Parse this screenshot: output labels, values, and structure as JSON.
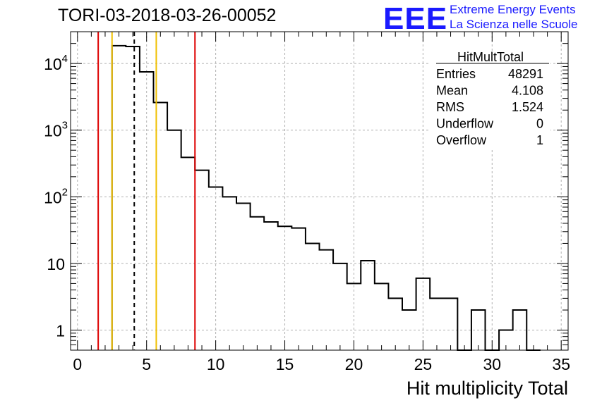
{
  "header": {
    "run_title": "TORI-03-2018-03-26-00052",
    "logo": "EEE",
    "logo_line1": "Extreme Energy Events",
    "logo_line2": "La Scienza nelle Scuole"
  },
  "stats": {
    "name": "HitMultTotal",
    "rows": [
      {
        "label": "Entries",
        "value": "48291"
      },
      {
        "label": "Mean",
        "value": "4.108"
      },
      {
        "label": "RMS",
        "value": "1.524"
      },
      {
        "label": "Underflow",
        "value": "0"
      },
      {
        "label": "Overflow",
        "value": "1"
      }
    ]
  },
  "chart_data": {
    "type": "histogram",
    "title": "TORI-03-2018-03-26-00052",
    "xlabel": "Hit multiplicity Total",
    "ylabel": "",
    "yscale": "log",
    "xlim": [
      -0.5,
      35.5
    ],
    "ylim": [
      0.5,
      30000
    ],
    "bin_width": 1,
    "bins": [
      {
        "x": 3,
        "y": 18500
      },
      {
        "x": 4,
        "y": 18000
      },
      {
        "x": 5,
        "y": 7500
      },
      {
        "x": 6,
        "y": 2600
      },
      {
        "x": 7,
        "y": 1000
      },
      {
        "x": 8,
        "y": 390
      },
      {
        "x": 9,
        "y": 250
      },
      {
        "x": 10,
        "y": 140
      },
      {
        "x": 11,
        "y": 100
      },
      {
        "x": 12,
        "y": 80
      },
      {
        "x": 13,
        "y": 50
      },
      {
        "x": 14,
        "y": 42
      },
      {
        "x": 15,
        "y": 36
      },
      {
        "x": 16,
        "y": 34
      },
      {
        "x": 17,
        "y": 20
      },
      {
        "x": 18,
        "y": 16
      },
      {
        "x": 19,
        "y": 10
      },
      {
        "x": 20,
        "y": 5
      },
      {
        "x": 21,
        "y": 11
      },
      {
        "x": 22,
        "y": 5
      },
      {
        "x": 23,
        "y": 3
      },
      {
        "x": 24,
        "y": 2
      },
      {
        "x": 25,
        "y": 6
      },
      {
        "x": 26,
        "y": 3
      },
      {
        "x": 27,
        "y": 3
      },
      {
        "x": 28,
        "y": 0
      },
      {
        "x": 29,
        "y": 2
      },
      {
        "x": 30,
        "y": 0
      },
      {
        "x": 31,
        "y": 1
      },
      {
        "x": 32,
        "y": 2
      },
      {
        "x": 33,
        "y": 0
      }
    ],
    "x_ticks": [
      0,
      5,
      10,
      15,
      20,
      25,
      30,
      35
    ],
    "x_tick_labels": [
      "0",
      "5",
      "10",
      "15",
      "20",
      "25",
      "30",
      "35"
    ],
    "y_ticks": [
      {
        "value": 1,
        "base": "1",
        "exp": ""
      },
      {
        "value": 10,
        "base": "10",
        "exp": ""
      },
      {
        "value": 100,
        "base": "10",
        "exp": "2"
      },
      {
        "value": 1000,
        "base": "10",
        "exp": "3"
      },
      {
        "value": 10000,
        "base": "10",
        "exp": "4"
      }
    ],
    "vertical_lines": [
      {
        "x": 1.5,
        "color": "#dd0000",
        "style": "solid"
      },
      {
        "x": 8.5,
        "color": "#dd0000",
        "style": "solid"
      },
      {
        "x": 2.5,
        "color": "#f0c000",
        "style": "solid"
      },
      {
        "x": 5.7,
        "color": "#f0c000",
        "style": "solid"
      },
      {
        "x": 4.108,
        "color": "#000000",
        "style": "dashed"
      }
    ],
    "grid": true
  }
}
